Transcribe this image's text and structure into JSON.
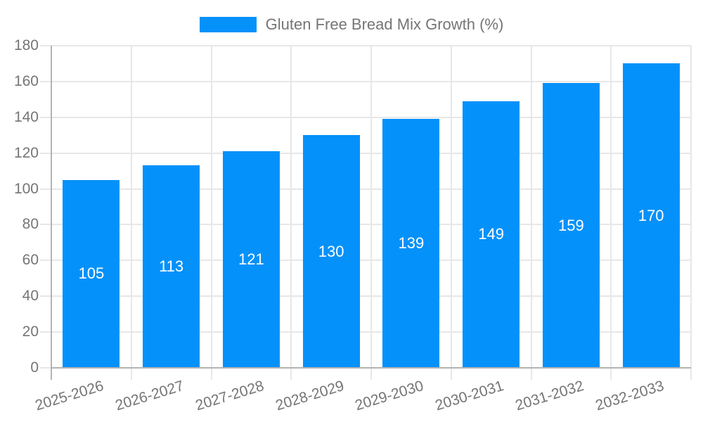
{
  "chart_data": {
    "type": "bar",
    "title": "",
    "xlabel": "",
    "ylabel": "",
    "series_label": "Gluten Free Bread Mix Growth (%)",
    "categories": [
      "2025-2026",
      "2026-2027",
      "2027-2028",
      "2028-2029",
      "2029-2030",
      "2030-2031",
      "2031-2032",
      "2032-2033"
    ],
    "values": [
      105,
      113,
      121,
      130,
      139,
      149,
      159,
      170
    ],
    "ylim": [
      0,
      180
    ],
    "ytick_step": 20,
    "ytick_labels": [
      "0",
      "20",
      "40",
      "60",
      "80",
      "100",
      "120",
      "140",
      "160",
      "180"
    ],
    "grid": true,
    "legend_position": "top-center",
    "x_label_rotation_deg": -17,
    "colors": {
      "bar": "#0591fa",
      "value_label": "#ffffff",
      "axis_text": "#757575",
      "gridline": "#e7e7e7",
      "axis_line": "#b3b3b3",
      "background": "#ffffff"
    }
  }
}
